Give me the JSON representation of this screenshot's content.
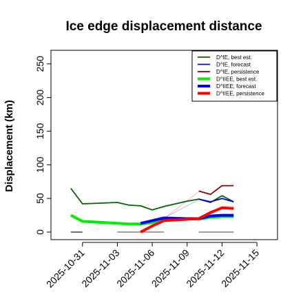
{
  "chart_data": {
    "type": "line",
    "title": "Ice edge displacement distance",
    "ylabel": "Displacement (km)",
    "xlabel": "",
    "ylim": [
      0,
      260
    ],
    "yticks": [
      0,
      50,
      100,
      150,
      200,
      250
    ],
    "xlim": [
      "2025-10-29",
      "2025-11-16"
    ],
    "xticks": [
      "2025-10-31",
      "2025-11-03",
      "2025-11-06",
      "2025-11-09",
      "2025-11-12",
      "2025-11-15"
    ],
    "highlight_tick": "2025-11-06",
    "highlight_color": "#228B22",
    "grid": false,
    "legend_position": "top-right",
    "series": [
      {
        "name": "D^IE, best est.",
        "color": "#006400",
        "width": "thin",
        "x": [
          "2025-10-30",
          "2025-10-31",
          "2025-11-03",
          "2025-11-04",
          "2025-11-05",
          "2025-11-06",
          "2025-11-07",
          "2025-11-09",
          "2025-11-10",
          "2025-11-11",
          "2025-11-12",
          "2025-11-13"
        ],
        "y": [
          65,
          42,
          44,
          40,
          39,
          33,
          38,
          46,
          49,
          44,
          54,
          45
        ]
      },
      {
        "name": "D^IE, forecast",
        "color": "#0000CD",
        "width": "thin",
        "x": [
          "2025-11-10",
          "2025-11-11",
          "2025-11-12",
          "2025-11-13"
        ],
        "y": [
          49,
          45,
          50,
          45
        ]
      },
      {
        "name": "D^IE, persistence",
        "color": "#8B0000",
        "width": "thin",
        "x": [
          "2025-11-10",
          "2025-11-11",
          "2025-11-12",
          "2025-11-13"
        ],
        "y": [
          61,
          56,
          69,
          69
        ]
      },
      {
        "name": "D^IIEE, best est.",
        "color": "#00EE00",
        "width": "thick",
        "x": [
          "2025-10-30",
          "2025-10-31",
          "2025-11-03",
          "2025-11-04",
          "2025-11-05",
          "2025-11-06",
          "2025-11-07",
          "2025-11-09",
          "2025-11-10",
          "2025-11-11",
          "2025-11-12",
          "2025-11-13"
        ],
        "y": [
          25,
          16,
          13,
          12,
          12,
          14,
          20,
          20,
          19,
          22,
          23,
          23
        ]
      },
      {
        "name": "D^IIEE, forecast",
        "color": "#0000FF",
        "width": "thick",
        "x": [
          "2025-11-05",
          "2025-11-06",
          "2025-11-07",
          "2025-11-09",
          "2025-11-10",
          "2025-11-11",
          "2025-11-12",
          "2025-11-13"
        ],
        "y": [
          13,
          17,
          21,
          20,
          20,
          24,
          25,
          25
        ]
      },
      {
        "name": "D^IIEE, persistence",
        "color": "#FF0000",
        "width": "thick",
        "x": [
          "2025-11-05",
          "2025-11-06",
          "2025-11-07",
          "2025-11-09",
          "2025-11-10",
          "2025-11-11",
          "2025-11-12",
          "2025-11-13"
        ],
        "y": [
          0,
          9,
          17,
          19,
          20,
          29,
          36,
          35
        ]
      }
    ],
    "reference_segments": [
      {
        "color": "#404040",
        "x": [
          "2025-10-30",
          "2025-10-31"
        ],
        "y": 0
      },
      {
        "color": "#808080",
        "x": [
          "2025-11-03",
          "2025-11-07"
        ],
        "y": 0
      },
      {
        "color": "#808080",
        "x": [
          "2025-11-10",
          "2025-11-13"
        ],
        "y": 0
      }
    ],
    "connector_lines": [
      {
        "color": "#FF9999",
        "x": [
          "2025-11-07",
          "2025-11-10"
        ],
        "y": [
          20,
          60
        ]
      },
      {
        "color": "#9999FF",
        "x": [
          "2025-11-07",
          "2025-11-10"
        ],
        "y": [
          21,
          48
        ]
      }
    ]
  }
}
